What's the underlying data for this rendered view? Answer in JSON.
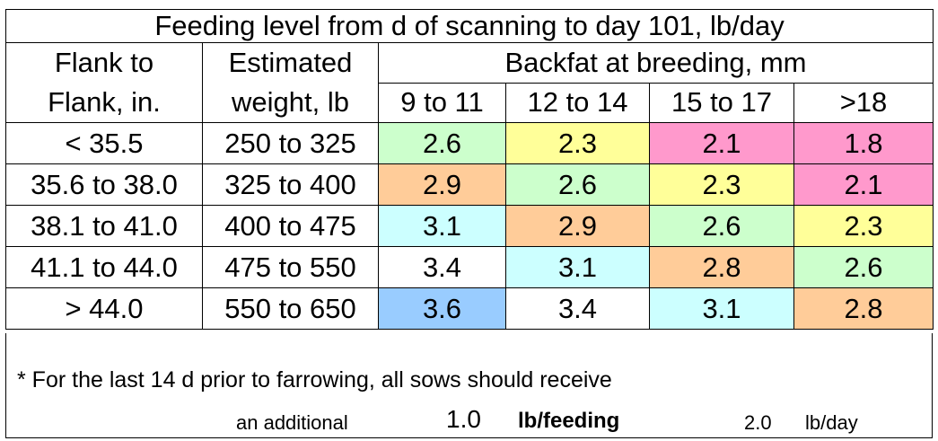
{
  "title": "Feeding level from d of scanning to day 101, lb/day",
  "headers": {
    "flank": "Flank to\nFlank, in.",
    "weight": "Estimated\nweight, lb",
    "backfat": "Backfat at breeding, mm",
    "backfat_cols": [
      "9 to 11",
      "12 to 14",
      "15 to 17",
      ">18"
    ]
  },
  "rows": [
    {
      "flank": "< 35.5",
      "weight": "250 to 325",
      "values": [
        "2.6",
        "2.3",
        "2.1",
        "1.8"
      ],
      "colors": [
        "#ccffcc",
        "#ffff99",
        "#ff99cc",
        "#ff99cc"
      ]
    },
    {
      "flank": "35.6 to 38.0",
      "weight": "325 to 400",
      "values": [
        "2.9",
        "2.6",
        "2.3",
        "2.1"
      ],
      "colors": [
        "#ffcc99",
        "#ccffcc",
        "#ffff99",
        "#ff99cc"
      ]
    },
    {
      "flank": "38.1 to 41.0",
      "weight": "400 to 475",
      "values": [
        "3.1",
        "2.9",
        "2.6",
        "2.3"
      ],
      "colors": [
        "#ccffff",
        "#ffcc99",
        "#ccffcc",
        "#ffff99"
      ]
    },
    {
      "flank": "41.1 to 44.0",
      "weight": "475 to 550",
      "values": [
        "3.4",
        "3.1",
        "2.8",
        "2.6"
      ],
      "colors": [
        "#ffffff",
        "#ccffff",
        "#ffcc99",
        "#ccffcc"
      ]
    },
    {
      "flank": "> 44.0",
      "weight": "550 to 650",
      "values": [
        "3.6",
        "3.4",
        "3.1",
        "2.8"
      ],
      "colors": [
        "#99ccff",
        "#ffffff",
        "#ccffff",
        "#ffcc99"
      ]
    }
  ],
  "footer": {
    "note": "* For the last 14 d prior to farrowing, all sows should receive",
    "additional_label": "an additional",
    "additional_value": "1.0",
    "additional_unit": "lb/feeding",
    "per_day_value": "2.0",
    "per_day_unit": "lb/day"
  }
}
